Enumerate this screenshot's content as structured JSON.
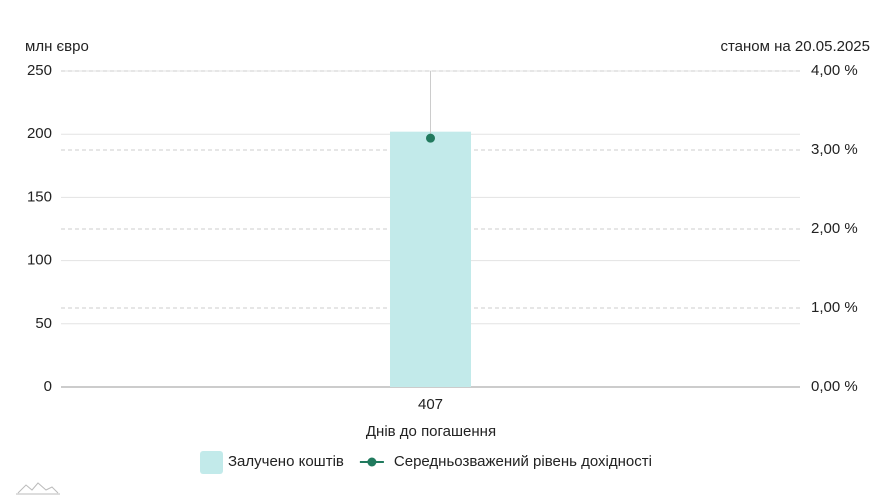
{
  "chart_data": {
    "type": "bar",
    "y_unit_label": "млн євро",
    "annotation": "станом на 20.05.2025",
    "xlabel": "Днів до погашення",
    "categories": [
      "407"
    ],
    "series": [
      {
        "name": "Залучено коштів",
        "type": "bar",
        "color": "#c2eaea",
        "values": [
          202
        ]
      },
      {
        "name": "Середньозважений рівень дохідності",
        "type": "line",
        "axis": "y2",
        "color": "#217a5e",
        "values": [
          3.15
        ]
      }
    ],
    "ylim": [
      0,
      250
    ],
    "yticks": [
      0,
      50,
      100,
      150,
      200,
      250
    ],
    "y2lim": [
      0,
      4
    ],
    "y2ticks": [
      {
        "value": 0,
        "label": "0,00 %"
      },
      {
        "value": 1,
        "label": "1,00 %"
      },
      {
        "value": 2,
        "label": "2,00 %"
      },
      {
        "value": 3,
        "label": "3,00 %"
      },
      {
        "value": 4,
        "label": "4,00 %"
      }
    ],
    "grid": true,
    "legend": "bottom"
  }
}
